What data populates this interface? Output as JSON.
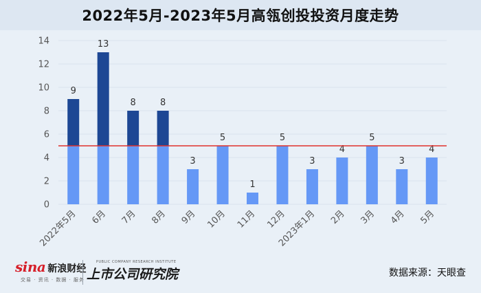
{
  "header": {
    "title": "2022年5月-2023年5月高瓴创投投资月度走势"
  },
  "footer": {
    "sina_logo_text": "sina",
    "sina_logo_cn": "新浪财经",
    "sina_logo_sub": "交易 · 资讯 · 数据 · 服务",
    "institute_cn": "上市公司研究院",
    "institute_en": "PUBLIC COMPANY RESEARCH INSTITUTE",
    "source": "数据来源：天眼查"
  },
  "colors": {
    "upper_bar": "#1d4794",
    "lower_bar": "#6598f6",
    "reference_line": "#e0302c",
    "gridline": "#d9e2ec"
  },
  "chart_data": {
    "type": "bar",
    "stacked_by_threshold": true,
    "threshold": 5,
    "categories": [
      "2022年5月",
      "6月",
      "7月",
      "8月",
      "9月",
      "10月",
      "11月",
      "12月",
      "2023年1月",
      "2月",
      "3月",
      "4月",
      "5月"
    ],
    "values": [
      9,
      13,
      8,
      8,
      3,
      5,
      1,
      5,
      3,
      4,
      5,
      3,
      4
    ],
    "yticks": [
      0,
      2,
      4,
      6,
      8,
      10,
      12,
      14
    ],
    "ylim": [
      0,
      14
    ],
    "grid": true,
    "reference_line": 5
  }
}
